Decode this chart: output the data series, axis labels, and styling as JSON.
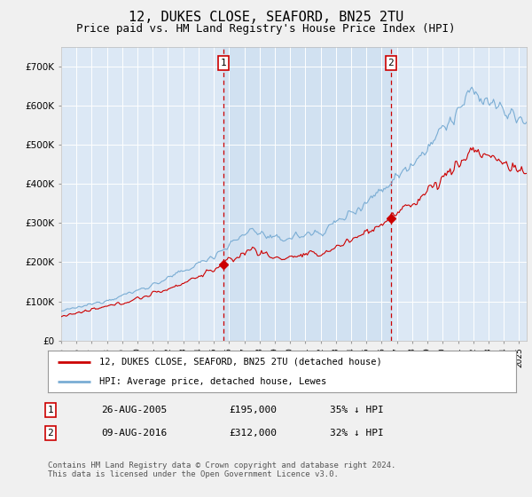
{
  "title": "12, DUKES CLOSE, SEAFORD, BN25 2TU",
  "subtitle": "Price paid vs. HM Land Registry's House Price Index (HPI)",
  "title_fontsize": 11,
  "subtitle_fontsize": 9,
  "bg_color": "#f0f0f0",
  "plot_bg_color": "#dce8f5",
  "highlight_color": "#cddff0",
  "grid_color": "#ffffff",
  "hpi_color": "#7aadd4",
  "price_color": "#cc0000",
  "dashed_color": "#cc0000",
  "ylim": [
    0,
    750000
  ],
  "yticks": [
    0,
    100000,
    200000,
    300000,
    400000,
    500000,
    600000,
    700000
  ],
  "ytick_labels": [
    "£0",
    "£100K",
    "£200K",
    "£300K",
    "£400K",
    "£500K",
    "£600K",
    "£700K"
  ],
  "sale1_year": 2005.65,
  "sale1_price": 195000,
  "sale1_label": "1",
  "sale2_year": 2016.6,
  "sale2_price": 312000,
  "sale2_label": "2",
  "legend_line1": "12, DUKES CLOSE, SEAFORD, BN25 2TU (detached house)",
  "legend_line2": "HPI: Average price, detached house, Lewes",
  "table_row1": [
    "1",
    "26-AUG-2005",
    "£195,000",
    "35% ↓ HPI"
  ],
  "table_row2": [
    "2",
    "09-AUG-2016",
    "£312,000",
    "32% ↓ HPI"
  ],
  "footer": "Contains HM Land Registry data © Crown copyright and database right 2024.\nThis data is licensed under the Open Government Licence v3.0.",
  "xmin": 1995,
  "xmax": 2025.5
}
